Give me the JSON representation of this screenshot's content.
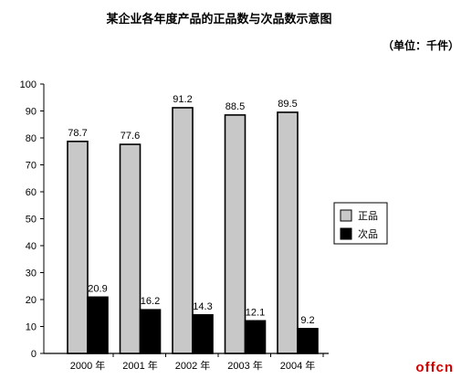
{
  "chart_data": {
    "type": "bar",
    "title": "某企业各年度产品的正品数与次品数示意图",
    "unit": "（单位：千件）",
    "categories": [
      "2000 年",
      "2001 年",
      "2002 年",
      "2003 年",
      "2004 年"
    ],
    "series": [
      {
        "name": "正品",
        "values": [
          78.7,
          77.6,
          91.2,
          88.5,
          89.5
        ],
        "color": "#c8c8c8"
      },
      {
        "name": "次品",
        "values": [
          20.9,
          16.2,
          14.3,
          12.1,
          9.2
        ],
        "color": "#000000"
      }
    ],
    "ylim": [
      0,
      100
    ],
    "yticks": [
      0,
      10,
      20,
      30,
      40,
      50,
      60,
      70,
      80,
      90,
      100
    ],
    "grid": false,
    "legend_position": "right"
  },
  "watermark": "offcn"
}
